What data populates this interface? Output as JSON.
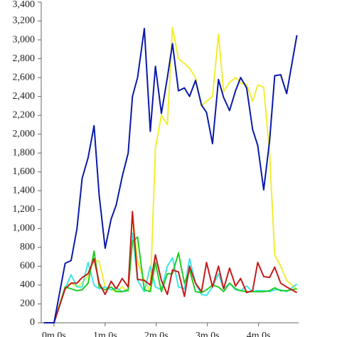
{
  "chart_data": {
    "type": "line",
    "x": [
      -12,
      0,
      13,
      20,
      27,
      33,
      40,
      47,
      53,
      60,
      67,
      73,
      80,
      87,
      92,
      98,
      106,
      113,
      119,
      126,
      133,
      139,
      146,
      153,
      159,
      166,
      173,
      179,
      186,
      193,
      199,
      206,
      213,
      219,
      226,
      233,
      239,
      246,
      253,
      259,
      266,
      273,
      285
    ],
    "series": [
      {
        "color": "#f2ee30",
        "values": [
          0,
          0,
          380,
          420,
          380,
          420,
          500,
          670,
          650,
          380,
          350,
          330,
          380,
          330,
          1150,
          650,
          450,
          330,
          1850,
          2200,
          2100,
          3130,
          2800,
          2750,
          2700,
          2600,
          2300,
          2350,
          2400,
          3060,
          2450,
          2550,
          2600,
          2540,
          2530,
          2350,
          2520,
          2500,
          1800,
          720,
          600,
          450,
          350
        ]
      },
      {
        "color": "#3ee6e6",
        "values": [
          0,
          0,
          360,
          510,
          380,
          380,
          640,
          400,
          360,
          380,
          350,
          370,
          330,
          340,
          950,
          450,
          330,
          600,
          380,
          350,
          600,
          690,
          380,
          360,
          680,
          420,
          300,
          290,
          380,
          520,
          360,
          420,
          350,
          340,
          390,
          330,
          340,
          340,
          330,
          350,
          350,
          330,
          410
        ]
      },
      {
        "color": "#22cc22",
        "values": [
          0,
          0,
          380,
          360,
          340,
          350,
          420,
          760,
          380,
          350,
          380,
          330,
          330,
          350,
          860,
          910,
          350,
          330,
          640,
          330,
          520,
          520,
          740,
          420,
          560,
          330,
          320,
          350,
          400,
          380,
          330,
          420,
          360,
          340,
          330,
          330,
          330,
          330,
          340,
          370,
          340,
          340,
          360
        ]
      },
      {
        "color": "#c41c1c",
        "values": [
          0,
          0,
          360,
          420,
          420,
          480,
          520,
          680,
          420,
          300,
          440,
          360,
          470,
          380,
          1180,
          460,
          450,
          400,
          720,
          450,
          300,
          560,
          540,
          280,
          600,
          420,
          330,
          640,
          380,
          600,
          360,
          580,
          390,
          470,
          320,
          340,
          640,
          490,
          480,
          590,
          420,
          380,
          320
        ]
      },
      {
        "color": "#0a1aa8",
        "values": [
          0,
          0,
          630,
          660,
          1000,
          1530,
          1750,
          2090,
          1350,
          790,
          1100,
          1250,
          1550,
          1800,
          2400,
          2600,
          3120,
          2030,
          2720,
          2220,
          2600,
          2960,
          2460,
          2490,
          2400,
          2570,
          2310,
          2230,
          1900,
          2580,
          2390,
          2250,
          2460,
          2600,
          2490,
          2050,
          1880,
          1410,
          1930,
          2620,
          2630,
          2430,
          3050
        ]
      }
    ],
    "xlim": [
      -15,
      287
    ],
    "xticks": [
      {
        "value": 0,
        "label": "0m 0s"
      },
      {
        "value": 60,
        "label": "1m 0s"
      },
      {
        "value": 120,
        "label": "2m 0s"
      },
      {
        "value": 180,
        "label": "3m 0s"
      },
      {
        "value": 240,
        "label": "4m 0s"
      }
    ],
    "ylim": [
      0,
      3400
    ],
    "yticks": [
      0,
      200,
      400,
      600,
      800,
      {
        "value": 1000,
        "label": "1,000"
      },
      {
        "value": 1200,
        "label": "1,200"
      },
      {
        "value": 1400,
        "label": "1,400"
      },
      {
        "value": 1600,
        "label": "1,600"
      },
      {
        "value": 1800,
        "label": "1,800"
      },
      {
        "value": 2000,
        "label": "2,000"
      },
      {
        "value": 2200,
        "label": "2,200"
      },
      {
        "value": 2400,
        "label": "2,400"
      },
      {
        "value": 2600,
        "label": "2,600"
      },
      {
        "value": 2800,
        "label": "2,800"
      },
      {
        "value": 3000,
        "label": "3,000"
      },
      {
        "value": 3200,
        "label": "3,200"
      },
      {
        "value": 3400,
        "label": "3,400"
      }
    ]
  }
}
